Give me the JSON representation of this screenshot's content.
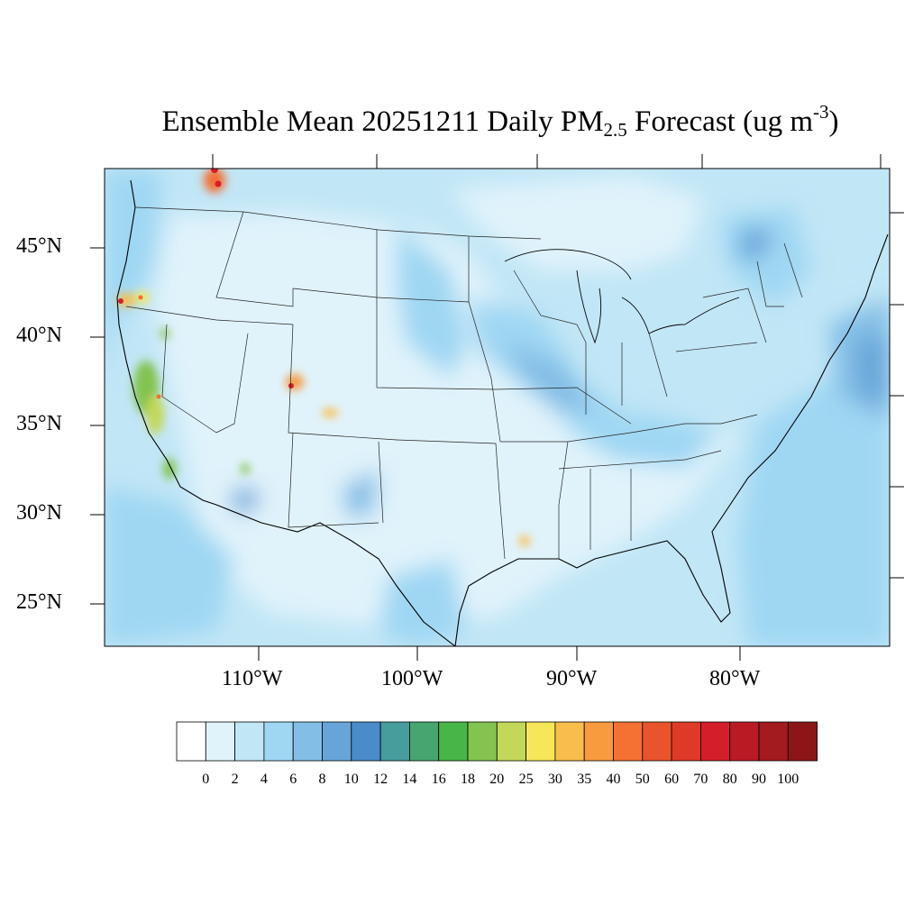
{
  "title": {
    "prefix": "Ensemble Mean 20251211 Daily PM",
    "subscript": "2.5",
    "middle": " Forecast (ug m",
    "superscript": "-3",
    "suffix": ")"
  },
  "map": {
    "projection": "lambert-conformal",
    "region": "CONUS",
    "variable": "PM2.5 daily mean concentration",
    "lat_labels": [
      "45°N",
      "40°N",
      "35°N",
      "30°N",
      "25°N"
    ],
    "lon_labels": [
      "110°W",
      "100°W",
      "90°W",
      "80°W"
    ],
    "hotspots": [
      {
        "name": "northern Idaho / Montana border",
        "level": "80-100"
      },
      {
        "name": "northern California coast",
        "level": "40-60"
      },
      {
        "name": "central California valley",
        "level": "20-40"
      },
      {
        "name": "southern California",
        "level": "18-25"
      },
      {
        "name": "western Colorado / Utah",
        "level": "60-80"
      },
      {
        "name": "southern Colorado",
        "level": "30-40"
      },
      {
        "name": "southern Louisiana",
        "level": "30-40"
      }
    ]
  },
  "colorbar": {
    "labels": [
      "0",
      "2",
      "4",
      "6",
      "8",
      "10",
      "12",
      "14",
      "16",
      "18",
      "20",
      "25",
      "30",
      "35",
      "40",
      "50",
      "60",
      "70",
      "80",
      "90",
      "100"
    ],
    "colors": [
      "#ffffff",
      "#e0f3fb",
      "#c1e6f6",
      "#9fd7f3",
      "#83bee6",
      "#67a5d9",
      "#4a8bc9",
      "#479c9c",
      "#47a670",
      "#48b548",
      "#83c350",
      "#c3d85a",
      "#f6e659",
      "#f8bd4a",
      "#f89a3e",
      "#f47033",
      "#e9542d",
      "#de3a28",
      "#d41f2a",
      "#ba1a24",
      "#a31a1f",
      "#8c1518"
    ]
  }
}
